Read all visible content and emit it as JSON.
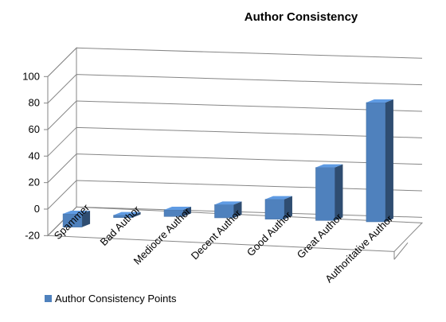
{
  "chart_data": {
    "type": "bar",
    "title": "Author Consistency",
    "categories": [
      "Spammer",
      "Bad Author",
      "Mediocre Author",
      "Decent Author",
      "Good Author",
      "Great Author",
      "Authoritative Author"
    ],
    "series": [
      {
        "name": "Author Consistency Points",
        "values": [
          -10,
          0,
          5,
          10,
          15,
          40,
          90
        ],
        "color": "#4F81BD"
      }
    ],
    "ylim": [
      -20,
      100
    ],
    "yticks": [
      -20,
      0,
      20,
      40,
      60,
      80,
      100
    ],
    "grid": true,
    "three_d": true,
    "legend": "bottom-left"
  }
}
